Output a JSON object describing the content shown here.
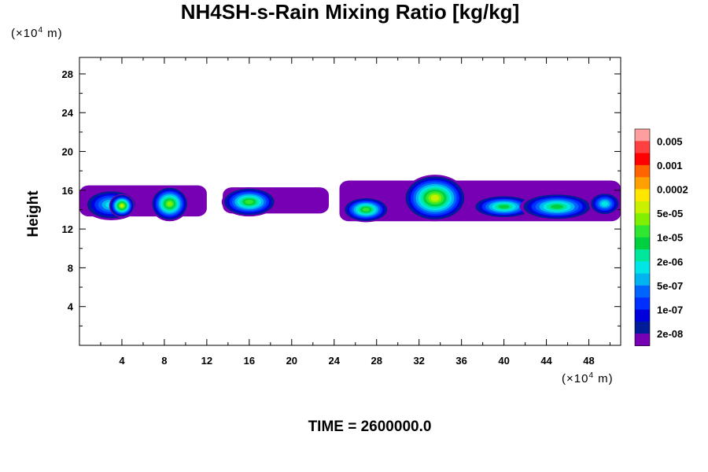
{
  "title": "NH4SH-s-Rain Mixing Ratio [kg/kg]",
  "unit_y": {
    "prefix": "(×10",
    "exp": "4",
    "suffix": " m)"
  },
  "unit_x": {
    "prefix": "(×10",
    "exp": "4",
    "suffix": " m)"
  },
  "time": {
    "label": "TIME = ",
    "value": "2600000.0"
  },
  "chart_data": {
    "type": "heatmap",
    "title": "NH4SH-s-Rain Mixing Ratio [kg/kg]",
    "xlabel": "",
    "ylabel": "Height",
    "xlim": [
      0,
      51
    ],
    "ylim": [
      0,
      29.7
    ],
    "x_ticks": [
      "4",
      "8",
      "12",
      "16",
      "20",
      "24",
      "28",
      "32",
      "36",
      "40",
      "44",
      "48"
    ],
    "x_tick_values": [
      4,
      8,
      12,
      16,
      20,
      24,
      28,
      32,
      36,
      40,
      44,
      48
    ],
    "y_ticks": [
      "4",
      "8",
      "12",
      "16",
      "20",
      "24",
      "28"
    ],
    "y_tick_values": [
      4,
      8,
      12,
      16,
      20,
      24,
      28
    ],
    "colorbar": {
      "labels": [
        "0.005",
        "0.001",
        "0.0002",
        "5e-05",
        "1e-05",
        "2e-06",
        "5e-07",
        "1e-07",
        "2e-08"
      ],
      "colors": [
        "#ff9e9e",
        "#ff4040",
        "#ff0000",
        "#ff6400",
        "#ffa000",
        "#ffe600",
        "#c8f000",
        "#80f000",
        "#30e630",
        "#00d040",
        "#00e69a",
        "#00e6e6",
        "#00b4f0",
        "#0064ff",
        "#0030ff",
        "#0000dc",
        "#001c96",
        "#7800b4"
      ]
    },
    "cells": [
      {
        "cx": 3.0,
        "cy": 14.5,
        "rx": 2.6,
        "ry": 1.6,
        "level": 6
      },
      {
        "cx": 4.0,
        "cy": 14.4,
        "rx": 1.2,
        "ry": 1.2,
        "level": 11
      },
      {
        "cx": 8.5,
        "cy": 14.6,
        "rx": 1.8,
        "ry": 1.8,
        "level": 10
      },
      {
        "cx": 16.0,
        "cy": 14.8,
        "rx": 2.6,
        "ry": 1.5,
        "level": 9
      },
      {
        "cx": 27.0,
        "cy": 14.0,
        "rx": 2.2,
        "ry": 1.3,
        "level": 9
      },
      {
        "cx": 33.5,
        "cy": 15.2,
        "rx": 3.0,
        "ry": 2.4,
        "level": 11
      },
      {
        "cx": 40.0,
        "cy": 14.3,
        "rx": 3.0,
        "ry": 1.2,
        "level": 8
      },
      {
        "cx": 45.0,
        "cy": 14.3,
        "rx": 3.5,
        "ry": 1.4,
        "level": 8
      },
      {
        "cx": 49.5,
        "cy": 14.6,
        "rx": 1.5,
        "ry": 1.2,
        "level": 6
      }
    ]
  }
}
